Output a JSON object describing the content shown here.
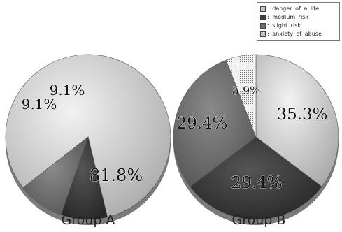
{
  "legend": {
    "items": [
      {
        "label": ": danger of a life",
        "color": "#c4c4c4",
        "pattern": "fine"
      },
      {
        "label": ": medium risk",
        "color": "#3c3c3c",
        "pattern": "solid"
      },
      {
        "label": ": slight risk",
        "color": "#6f6f6f",
        "pattern": "solid"
      },
      {
        "label": ": anxiety of abuse",
        "color": "#e8e8e8",
        "pattern": "dots"
      }
    ]
  },
  "chart_data": [
    {
      "type": "pie",
      "xlabel": "Group A",
      "slices": [
        {
          "category": "danger of a life",
          "value": 81.8,
          "label": "81.8%"
        },
        {
          "category": "medium risk",
          "value": 9.1,
          "label": "9.1%"
        },
        {
          "category": "slight risk",
          "value": 9.1,
          "label": "9.1%"
        }
      ]
    },
    {
      "type": "pie",
      "xlabel": "Group B",
      "slices": [
        {
          "category": "danger of a life",
          "value": 35.3,
          "label": "35.3%"
        },
        {
          "category": "medium risk",
          "value": 29.4,
          "label": "29.4%"
        },
        {
          "category": "slight risk",
          "value": 29.4,
          "label": "29.4%"
        },
        {
          "category": "anxiety of abuse",
          "value": 5.9,
          "label": "5.9%"
        }
      ]
    }
  ]
}
